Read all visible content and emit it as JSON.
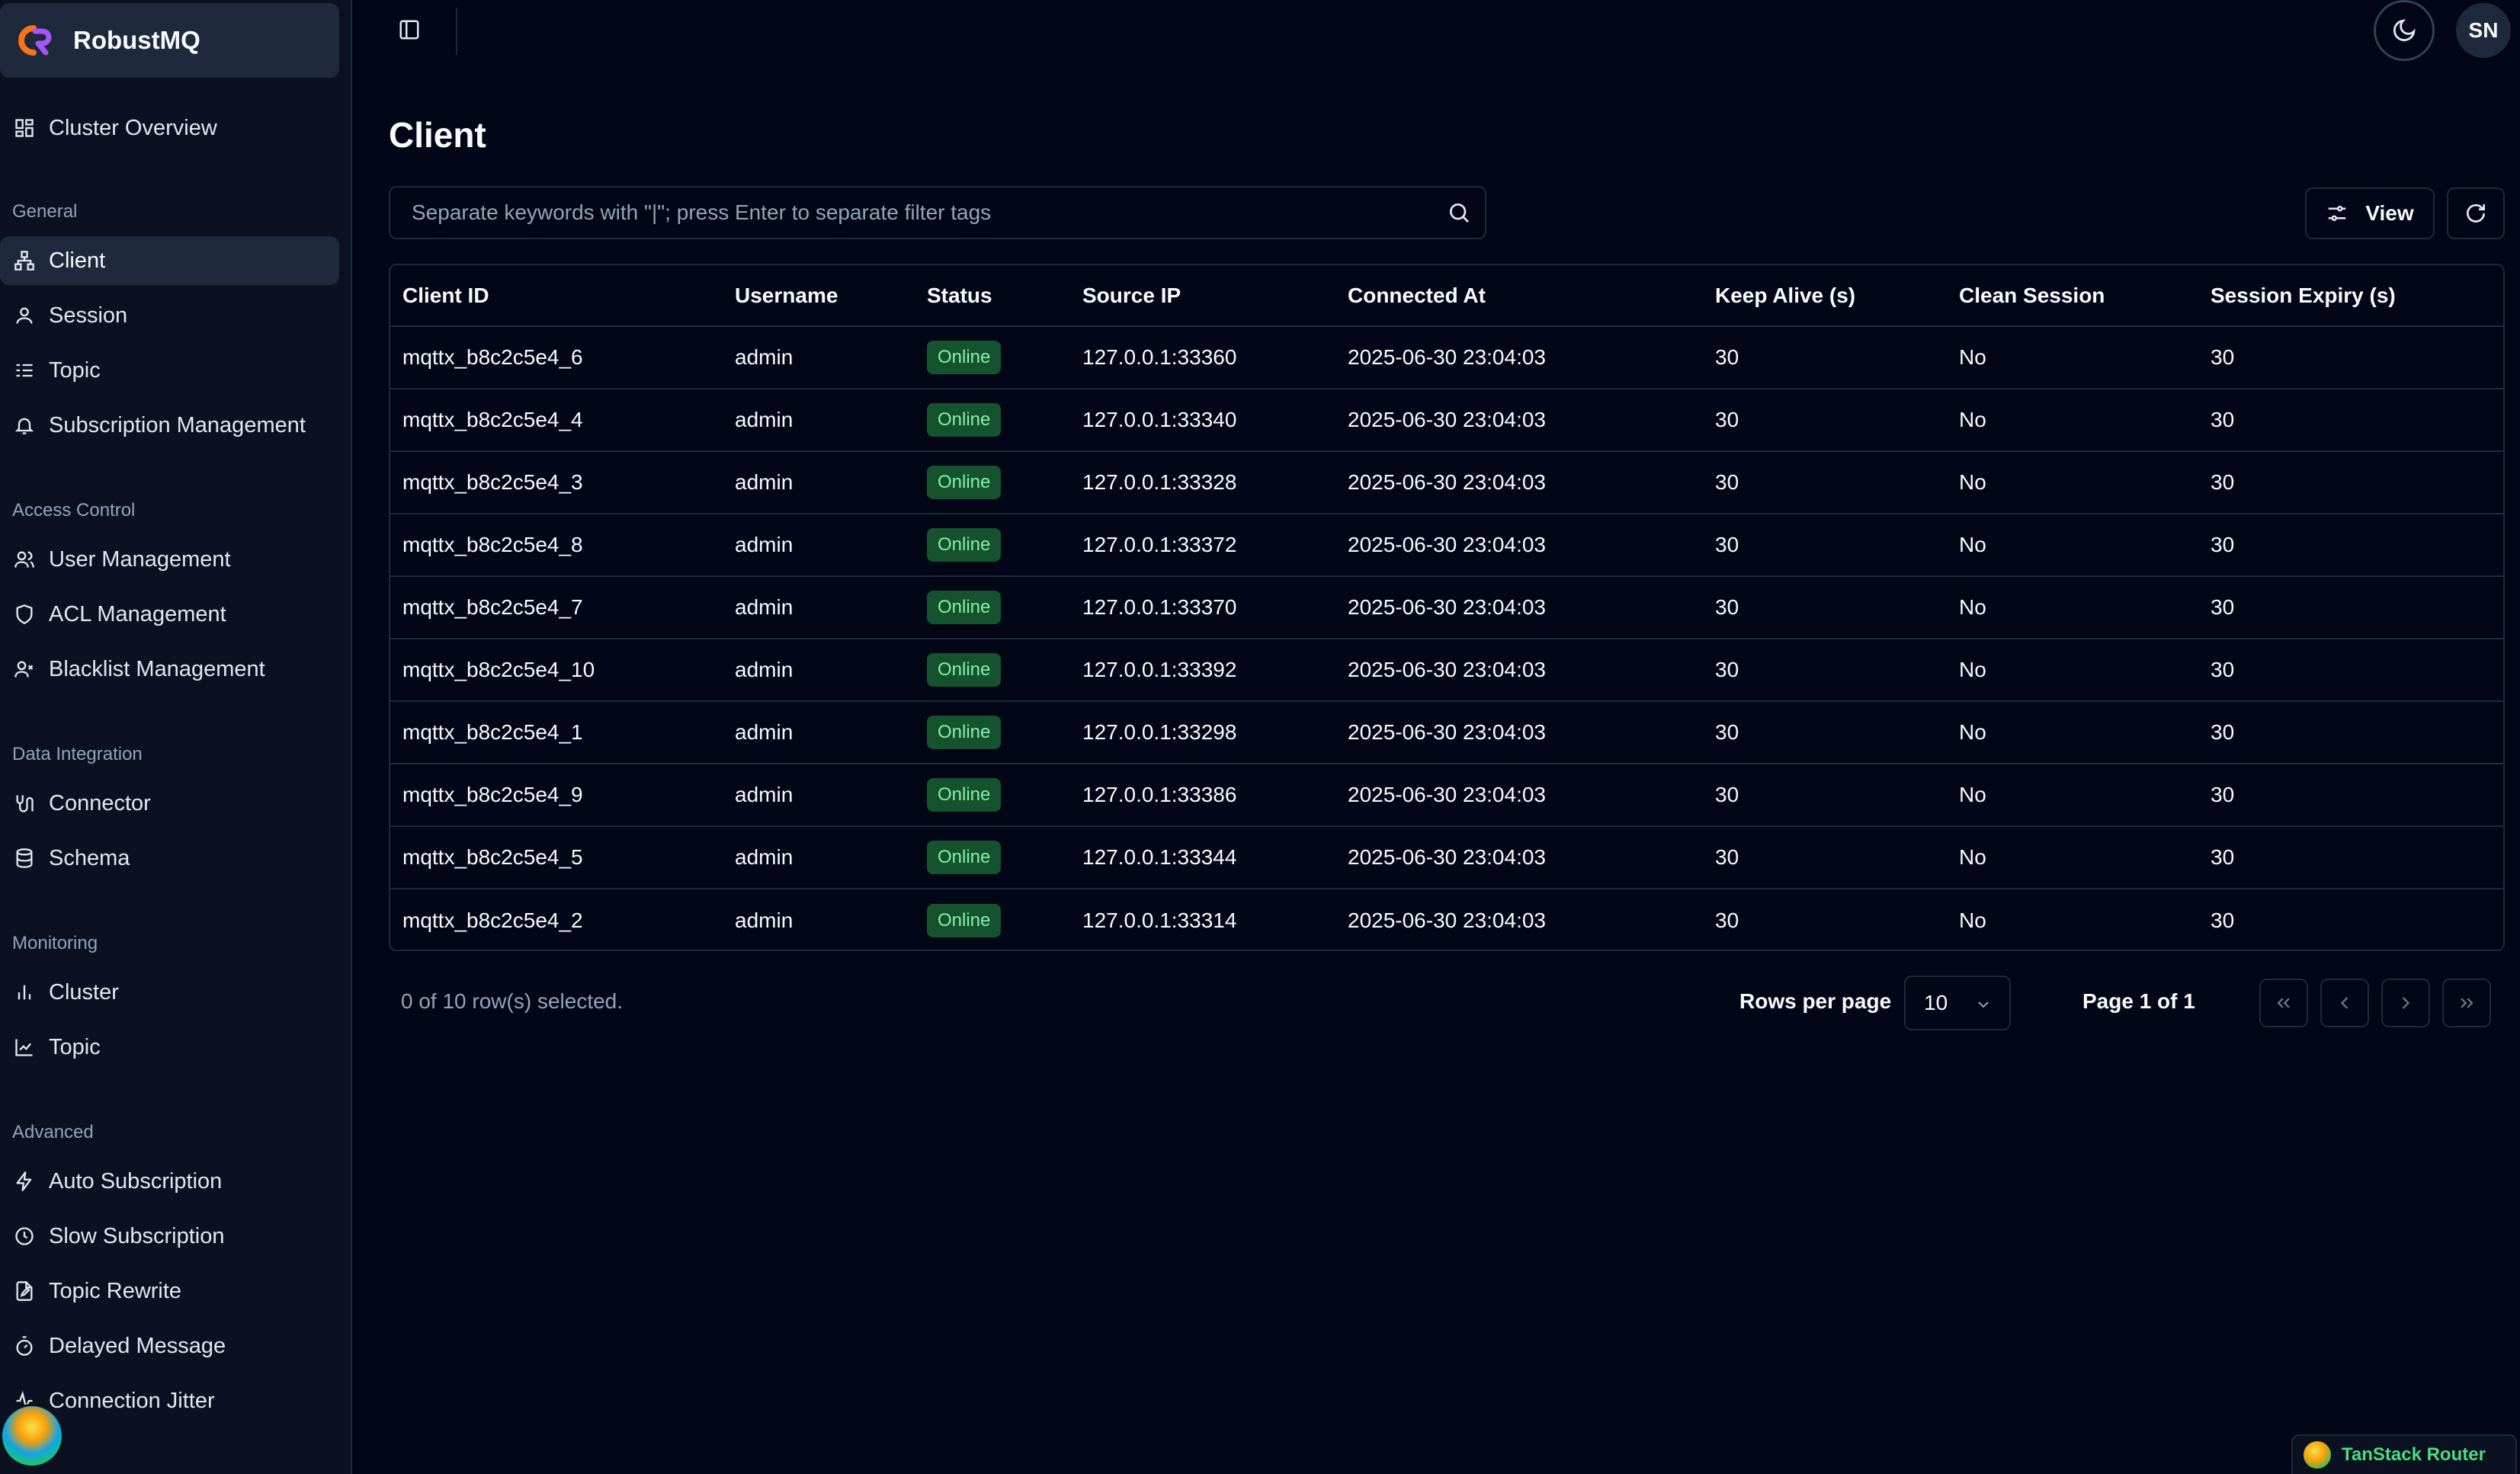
{
  "brand": {
    "name": "RobustMQ"
  },
  "sidebar": {
    "overview": {
      "label": "Cluster Overview"
    },
    "groups": [
      {
        "label": "General",
        "items": [
          {
            "label": "Client",
            "icon": "network-icon",
            "active": true
          },
          {
            "label": "Session",
            "icon": "user-icon"
          },
          {
            "label": "Topic",
            "icon": "list-icon"
          },
          {
            "label": "Subscription Management",
            "icon": "bell-icon"
          }
        ]
      },
      {
        "label": "Access Control",
        "items": [
          {
            "label": "User Management",
            "icon": "users-icon"
          },
          {
            "label": "ACL Management",
            "icon": "shield-icon"
          },
          {
            "label": "Blacklist Management",
            "icon": "user-x-icon"
          }
        ]
      },
      {
        "label": "Data Integration",
        "items": [
          {
            "label": "Connector",
            "icon": "cable-icon"
          },
          {
            "label": "Schema",
            "icon": "database-icon"
          }
        ]
      },
      {
        "label": "Monitoring",
        "items": [
          {
            "label": "Cluster",
            "icon": "bar-chart-icon"
          },
          {
            "label": "Topic",
            "icon": "line-chart-icon"
          }
        ]
      },
      {
        "label": "Advanced",
        "items": [
          {
            "label": "Auto Subscription",
            "icon": "zap-icon"
          },
          {
            "label": "Slow Subscription",
            "icon": "clock-icon"
          },
          {
            "label": "Topic Rewrite",
            "icon": "file-edit-icon"
          },
          {
            "label": "Delayed Message",
            "icon": "timer-icon"
          },
          {
            "label": "Connection Jitter",
            "icon": "activity-icon"
          }
        ]
      }
    ]
  },
  "header": {
    "user_initials": "SN"
  },
  "main": {
    "title": "Client",
    "search": {
      "placeholder": "Separate keywords with \"|\"; press Enter to separate filter tags",
      "value": ""
    },
    "view_label": "View",
    "table": {
      "columns": [
        "Client ID",
        "Username",
        "Status",
        "Source IP",
        "Connected At",
        "Keep Alive (s)",
        "Clean Session",
        "Session Expiry (s)"
      ],
      "rows": [
        [
          "mqttx_b8c2c5e4_6",
          "admin",
          "Online",
          "127.0.0.1:33360",
          "2025-06-30 23:04:03",
          "30",
          "No",
          "30"
        ],
        [
          "mqttx_b8c2c5e4_4",
          "admin",
          "Online",
          "127.0.0.1:33340",
          "2025-06-30 23:04:03",
          "30",
          "No",
          "30"
        ],
        [
          "mqttx_b8c2c5e4_3",
          "admin",
          "Online",
          "127.0.0.1:33328",
          "2025-06-30 23:04:03",
          "30",
          "No",
          "30"
        ],
        [
          "mqttx_b8c2c5e4_8",
          "admin",
          "Online",
          "127.0.0.1:33372",
          "2025-06-30 23:04:03",
          "30",
          "No",
          "30"
        ],
        [
          "mqttx_b8c2c5e4_7",
          "admin",
          "Online",
          "127.0.0.1:33370",
          "2025-06-30 23:04:03",
          "30",
          "No",
          "30"
        ],
        [
          "mqttx_b8c2c5e4_10",
          "admin",
          "Online",
          "127.0.0.1:33392",
          "2025-06-30 23:04:03",
          "30",
          "No",
          "30"
        ],
        [
          "mqttx_b8c2c5e4_1",
          "admin",
          "Online",
          "127.0.0.1:33298",
          "2025-06-30 23:04:03",
          "30",
          "No",
          "30"
        ],
        [
          "mqttx_b8c2c5e4_9",
          "admin",
          "Online",
          "127.0.0.1:33386",
          "2025-06-30 23:04:03",
          "30",
          "No",
          "30"
        ],
        [
          "mqttx_b8c2c5e4_5",
          "admin",
          "Online",
          "127.0.0.1:33344",
          "2025-06-30 23:04:03",
          "30",
          "No",
          "30"
        ],
        [
          "mqttx_b8c2c5e4_2",
          "admin",
          "Online",
          "127.0.0.1:33314",
          "2025-06-30 23:04:03",
          "30",
          "No",
          "30"
        ]
      ]
    },
    "footer": {
      "selection": "0 of 10 row(s) selected.",
      "rows_per_page_label": "Rows per page",
      "rows_per_page_value": "10",
      "page_info": "Page 1 of 1"
    }
  },
  "devtools": {
    "label": "TanStack Router"
  },
  "colors": {
    "online_bg": "#14532d",
    "online_text": "#86efac",
    "accent_green": "#4ade80"
  }
}
